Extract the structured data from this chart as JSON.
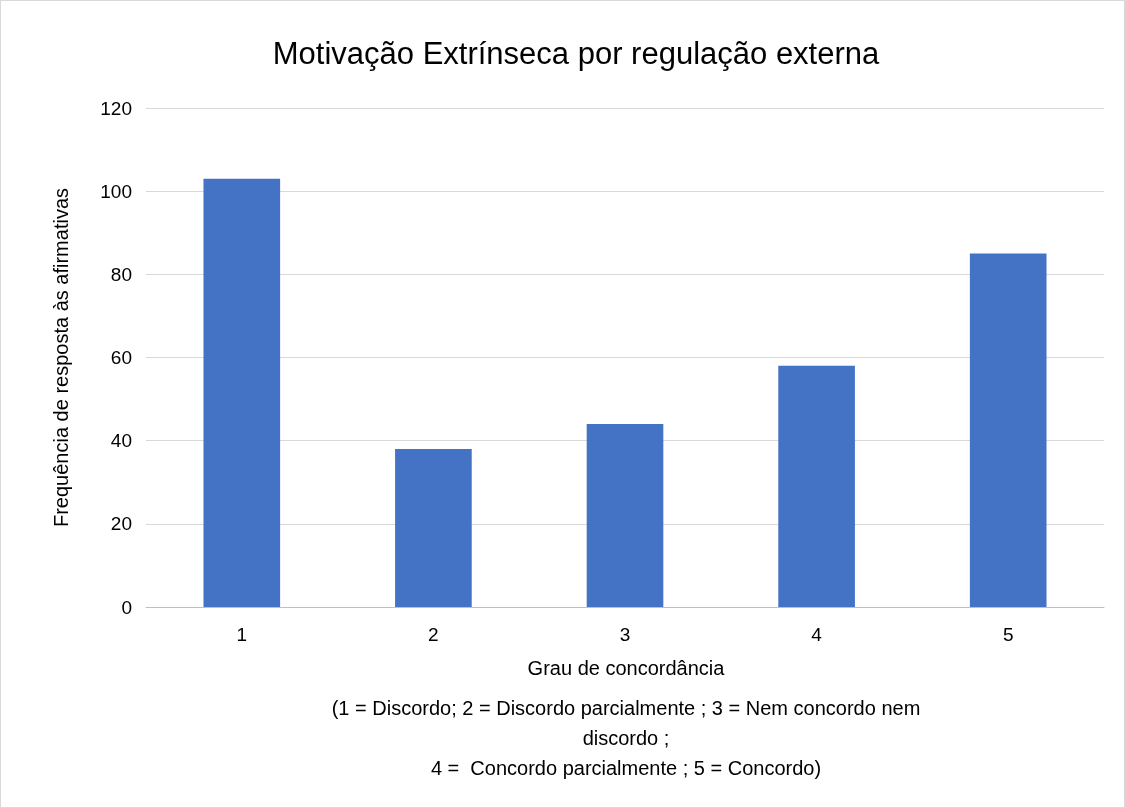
{
  "chart_data": {
    "type": "bar",
    "title": "Motivação Extrínseca por regulação externa",
    "xlabel": "Grau de concordância",
    "ylabel": "Frequência de resposta às afirmativas",
    "annotations": [
      "(1 = Discordo; 2 = Discordo parcialmente ; 3 = Nem concordo nem\ndiscordo ;\n4 =  Concordo parcialmente ; 5 = Concordo)"
    ],
    "categories": [
      "1",
      "2",
      "3",
      "4",
      "5"
    ],
    "values": [
      103,
      38,
      44,
      58,
      85
    ],
    "color": "#4472c4",
    "ylim": [
      0,
      120
    ],
    "yticks": [
      0,
      20,
      40,
      60,
      80,
      100,
      120
    ],
    "grid": "y"
  }
}
